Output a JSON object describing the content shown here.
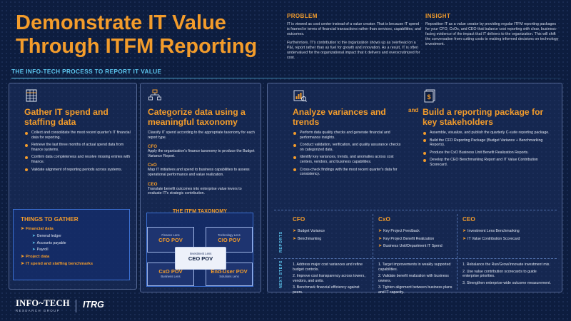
{
  "title": {
    "line1": "Demonstrate IT Value",
    "line2": "Through ITFM Reporting"
  },
  "process_label": "THE INFO-TECH PROCESS TO REPORT IT VALUE",
  "problem": {
    "heading": "PROBLEM",
    "p1": "IT is viewed as cost center instead of a value creator. That is because IT spend is framed in terms of financial transactions rather than services, capabilities, and outcomes.",
    "p2": "Furthermore, IT's contribution to the organization shows up as overhead on a P&L report rather than as fuel for growth and innovation. As a result, IT is often undervalued for the organizational impact that it delivers and overscrutinized for cost."
  },
  "insight": {
    "heading": "INSIGHT",
    "text": "Reposition IT as a value creator by providing regular ITFM reporting packages for your CFO, CxOs, and CEO that balance cost reporting with clear, business-facing evidence of the impact that IT delivers to the organization. This will shift the conversation from cutting costs to making informed decisions on technology investment."
  },
  "step1": {
    "icon": "spreadsheet-icon",
    "title": "Gather IT spend and staffing data",
    "bullets": [
      "Collect and consolidate the most recent quarter's IT financial data for reporting.",
      "Retrieve the last three months of actual spend data from finance systems.",
      "Confirm data completeness and resolve missing entries with finance.",
      "Validate alignment of reporting periods across systems."
    ]
  },
  "things": {
    "heading": "THINGS TO GATHER",
    "groups": [
      {
        "label": "Financial data",
        "subs": [
          "General ledger",
          "Accounts payable",
          "Payroll"
        ]
      },
      {
        "label": "Project data",
        "subs": []
      },
      {
        "label": "IT spend and staffing benchmarks",
        "subs": []
      }
    ]
  },
  "step2": {
    "icon": "hierarchy-icon",
    "title": "Categorize data using a meaningful taxonomy",
    "intro": "Classify IT spend according to the appropriate taxonomy for each report type.",
    "roles": [
      {
        "label": "CFO",
        "text": "Apply the organization's finance taxonomy to produce the Budget Variance Report."
      },
      {
        "label": "CxO",
        "text": "Map IT initiatives and spend to business capabilities to assess operational performance and value realization."
      },
      {
        "label": "CEO",
        "text": "Translate benefit outcomes into enterprise value levers to evaluate IT's strategic contribution."
      }
    ]
  },
  "taxonomy": {
    "heading": "THE ITFM TAXONOMY",
    "finance": {
      "lens": "Finance Lens",
      "pov": "CFO POV"
    },
    "technology": {
      "lens": "Technology Lens",
      "pov": "CIO POV"
    },
    "investment": {
      "lens": "Investment Lens",
      "pov": "CEO POV"
    },
    "business": {
      "lens": "Business Lens",
      "pov": "CxO POV"
    },
    "solutions": {
      "lens": "Solutions Lens",
      "pov": "End-User POV"
    }
  },
  "step3": {
    "icon": "chart-report-icon",
    "title": "Analyze variances and trends",
    "bullets": [
      "Perform data quality checks and generate financial and performance insights.",
      "Conduct validation, verification, and quality assurance checks on categorized data.",
      "Identify key variances, trends, and anomalies across cost centers, vendors, and business capabilities.",
      "Cross-check findings with the most recent quarter's data for consistency."
    ]
  },
  "and_label": "and",
  "step4": {
    "icon": "report-package-icon",
    "title": "Build a reporting package for key stakeholders",
    "bullets": [
      "Assemble, visualize, and publish the quarterly C-suite reporting package.",
      "Build the CFO Reporting Package (Budget Variance + Benchmarking Reports).",
      "Produce the CxO Business Unit Benefit Realization Reports.",
      "Develop the CEO Benchmarking Report and IT Value Contribution Scorecard."
    ]
  },
  "matrix": {
    "reports_label": "REPORTS",
    "next_label": "NEXT STEPS",
    "columns": [
      {
        "heading": "CFO",
        "reports": [
          "Budget Variance",
          "Benchmarking"
        ],
        "next": [
          "1. Address major cost variances and refine budget controls.",
          "2. Improve cost transparency across towers, vendors, and units.",
          "3. Benchmark financial efficiency against peers."
        ]
      },
      {
        "heading": "CxO",
        "reports": [
          "Key Project Feedback",
          "Key Project Benefit Realization",
          "Business Unit/Department IT Spend"
        ],
        "next": [
          "1. Target improvements in weakly supported capabilities.",
          "2. Validate benefit realization with business owners.",
          "3. Tighten alignment between business plans and IT capacity."
        ]
      },
      {
        "heading": "CEO",
        "reports": [
          "Investment Lens Benchmarking",
          "IT Value Contribution Scorecard"
        ],
        "next": [
          "1. Rebalance the Run/Grow/Innovate investment mix.",
          "2. Use value contribution scorecards to guide enterprise priorities.",
          "3. Strengthen enterprise-wide outcome measurement."
        ]
      }
    ]
  },
  "logos": {
    "infotech": "INFO~TECH",
    "infotech_sub": "RESEARCH GROUP",
    "itrg": "ITRG"
  },
  "colors": {
    "accent": "#f39c2b",
    "background": "#0d1d3f",
    "highlight": "#5ec8f0"
  }
}
